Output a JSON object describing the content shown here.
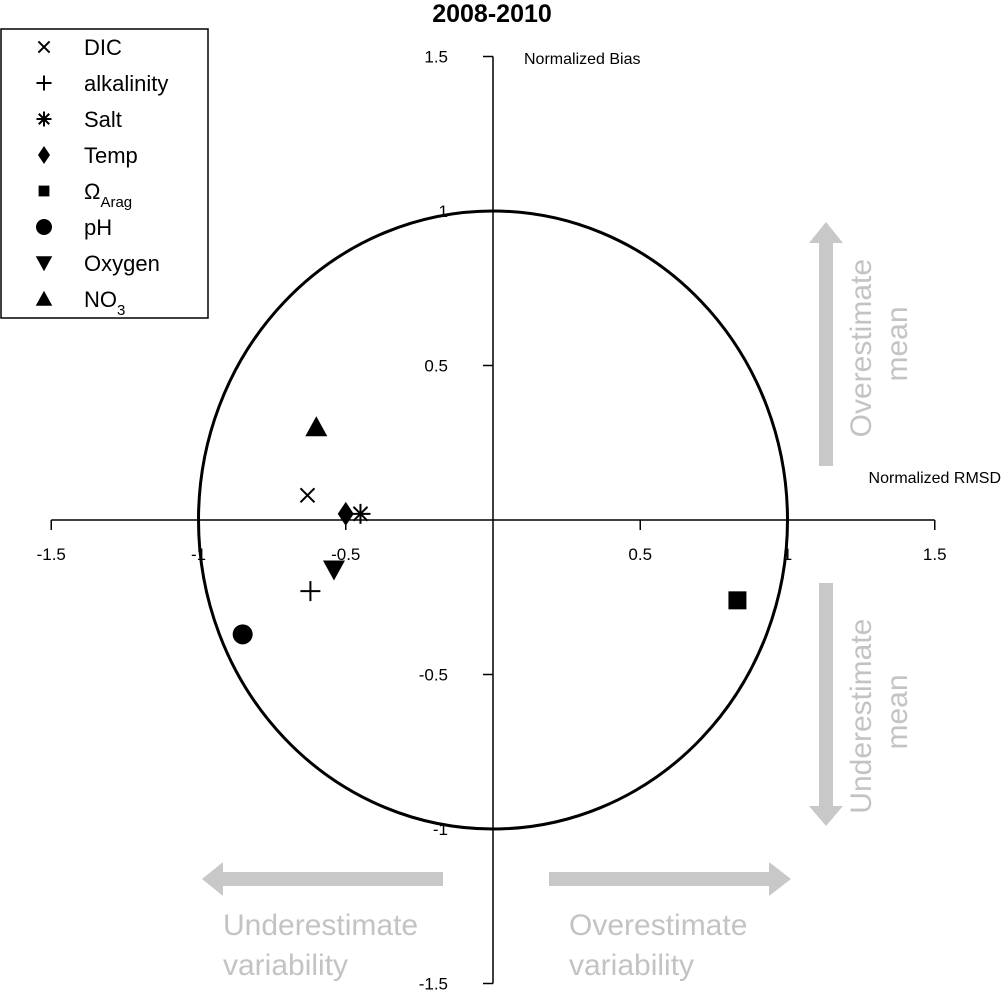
{
  "chart_data": {
    "type": "scatter",
    "title": "2008-2010",
    "xlabel": "Normalized RMSD",
    "ylabel": "Normalized Bias",
    "xlim": [
      -1.5,
      1.5
    ],
    "ylim": [
      -1.5,
      1.5
    ],
    "x_ticks": [
      "-1.5",
      "-1",
      "-0.5",
      "0.5",
      "1",
      "1.5"
    ],
    "y_ticks": [
      "1.5",
      "1",
      "0.5",
      "-0.5",
      "-1",
      "-1.5"
    ],
    "reference_circle_radius": 1,
    "legend_position": "top-left",
    "series": [
      {
        "name": "DIC",
        "marker": "x",
        "x": -0.63,
        "y": 0.08
      },
      {
        "name": "alkalinity",
        "marker": "plus",
        "x": -0.62,
        "y": -0.23
      },
      {
        "name": "Salt",
        "marker": "asterisk",
        "x": -0.45,
        "y": 0.02
      },
      {
        "name": "Temp",
        "marker": "diamond",
        "x": -0.5,
        "y": 0.02
      },
      {
        "name": "Ω",
        "name_sub": "Arag",
        "marker": "square",
        "x": 0.83,
        "y": -0.26
      },
      {
        "name": "pH",
        "marker": "circle",
        "x": -0.85,
        "y": -0.37
      },
      {
        "name": "Oxygen",
        "marker": "triangle-down",
        "x": -0.54,
        "y": -0.16
      },
      {
        "name": "NO",
        "name_sub": "3",
        "marker": "triangle-up",
        "x": -0.6,
        "y": 0.3
      }
    ],
    "annotations": {
      "overestimate_mean": [
        "Overestimate",
        "mean"
      ],
      "underestimate_mean": [
        "Underestimate",
        "mean"
      ],
      "underestimate_variability": [
        "Underestimate",
        "variability"
      ],
      "overestimate_variability": [
        "Overestimate",
        "variability"
      ]
    },
    "colors": {
      "marks": "#000000",
      "annotations": "#c3c3c3"
    }
  }
}
